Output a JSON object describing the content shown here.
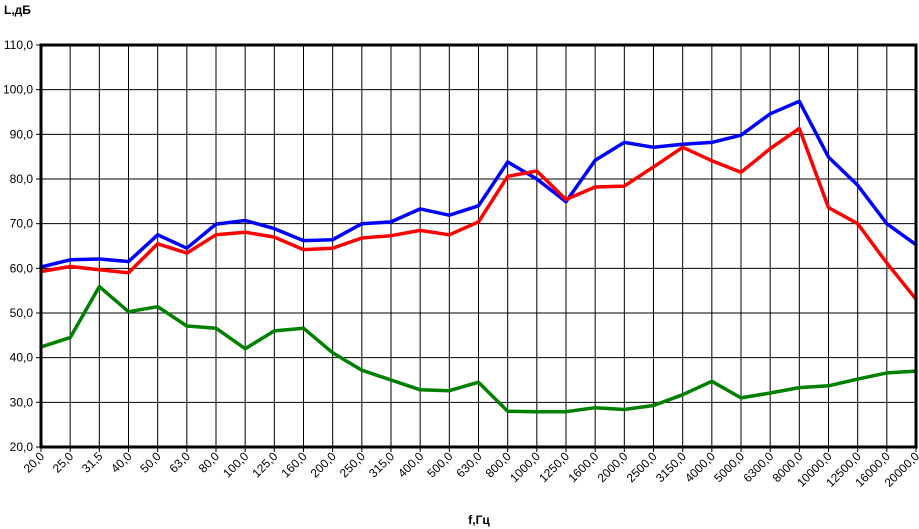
{
  "chart_data": {
    "type": "line",
    "title": "",
    "xlabel": "f,Гц",
    "ylabel": "L,дБ",
    "ylim": [
      20,
      110
    ],
    "yticks": [
      "20,0",
      "30,0",
      "40,0",
      "50,0",
      "60,0",
      "70,0",
      "80,0",
      "90,0",
      "100,0",
      "110,0"
    ],
    "categories": [
      "20,0",
      "25,0",
      "31,5",
      "40,0",
      "50,0",
      "63,0",
      "80,0",
      "100,0",
      "125,0",
      "160,0",
      "200,0",
      "250,0",
      "315,0",
      "400,0",
      "500,0",
      "630,0",
      "800,0",
      "1000,0",
      "1250,0",
      "1600,0",
      "2000,0",
      "2500,0",
      "3150,0",
      "4000,0",
      "5000,0",
      "6300,0",
      "8000,0",
      "10000,0",
      "12500,0",
      "16000,0",
      "20000,0"
    ],
    "grid": true,
    "legend": "none",
    "series": [
      {
        "color": "#0000ff",
        "values": [
          60.3,
          61.9,
          62.1,
          61.5,
          67.5,
          64.5,
          69.9,
          70.7,
          68.9,
          66.2,
          66.4,
          70.0,
          70.4,
          73.3,
          71.9,
          74.0,
          83.8,
          80.0,
          74.9,
          84.2,
          88.2,
          87.1,
          87.8,
          88.2,
          89.8,
          94.6,
          97.4,
          84.9,
          78.6,
          70.0,
          65.3
        ]
      },
      {
        "color": "#ff0000",
        "values": [
          59.3,
          60.4,
          59.7,
          59.0,
          65.5,
          63.4,
          67.5,
          68.1,
          67.0,
          64.2,
          64.5,
          66.8,
          67.3,
          68.5,
          67.5,
          70.4,
          80.6,
          81.8,
          75.4,
          78.2,
          78.4,
          82.7,
          87.1,
          84.1,
          81.5,
          86.8,
          91.3,
          73.6,
          70.0,
          61.2,
          53.1
        ]
      },
      {
        "color": "#008000",
        "values": [
          42.4,
          44.5,
          55.9,
          50.3,
          51.4,
          47.1,
          46.6,
          42.0,
          46.0,
          46.6,
          41.1,
          37.2,
          35.0,
          32.8,
          32.6,
          34.5,
          28.0,
          27.9,
          27.9,
          28.8,
          28.4,
          29.3,
          31.7,
          34.7,
          31.0,
          32.1,
          33.3,
          33.7,
          35.2,
          36.6,
          37.0
        ]
      }
    ]
  }
}
